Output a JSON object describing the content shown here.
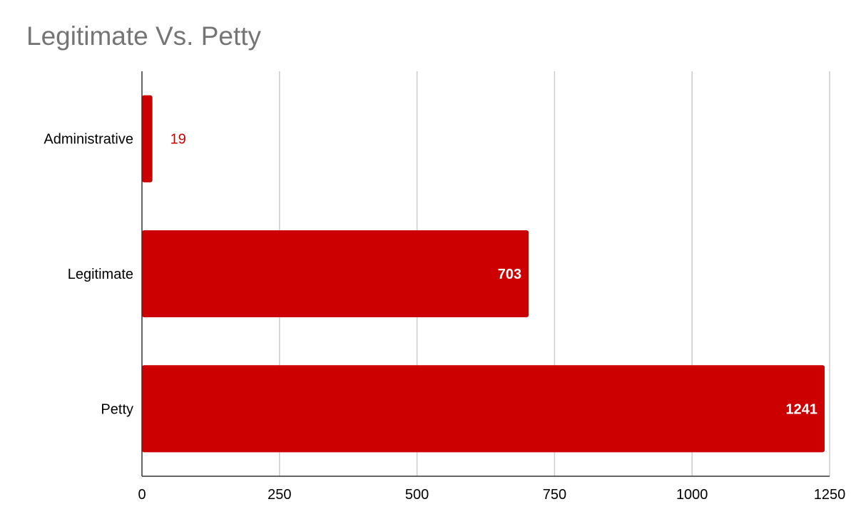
{
  "chart_data": {
    "type": "bar",
    "orientation": "horizontal",
    "title": "Legitimate Vs. Petty",
    "xlabel": "",
    "ylabel": "",
    "categories": [
      "Administrative",
      "Legitimate",
      "Petty"
    ],
    "values": [
      19,
      703,
      1241
    ],
    "data_labels": [
      "19",
      "703",
      "1241"
    ],
    "xlim": [
      0,
      1250
    ],
    "x_ticks": [
      0,
      250,
      500,
      750,
      1000,
      1250
    ],
    "x_tick_labels": [
      "0",
      "250",
      "500",
      "750",
      "1000",
      "1250"
    ],
    "grid": true,
    "legend": "none",
    "bar_color": "#cc0000",
    "outside_label_color": "#cc0000",
    "inside_label_color": "#ffffff"
  }
}
